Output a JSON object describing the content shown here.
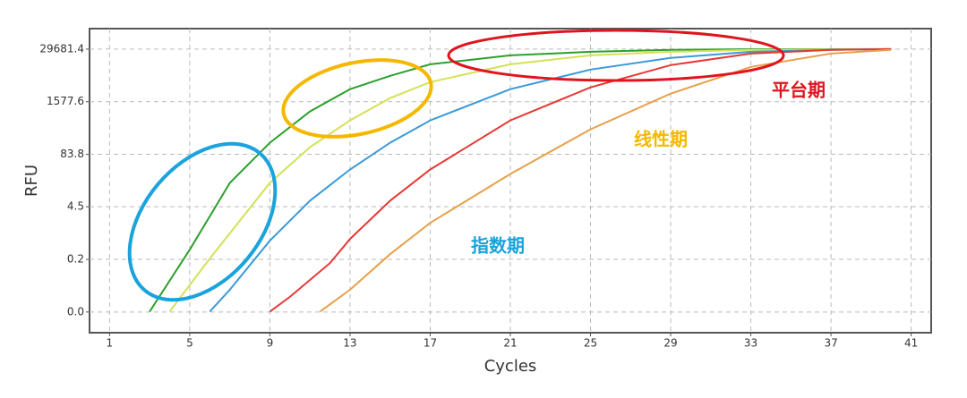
{
  "chart_data": {
    "type": "line",
    "ylabel": "RFU",
    "xlabel": "Cycles",
    "yscale": "log",
    "grid": true,
    "xlim": [
      0,
      42
    ],
    "xticks": [
      1,
      5,
      9,
      13,
      17,
      21,
      25,
      29,
      33,
      37,
      41
    ],
    "ylim": [
      0.004,
      93000
    ],
    "yticks": [
      {
        "value": 0.0127,
        "label": "0.0"
      },
      {
        "value": 0.239,
        "label": "0.2"
      },
      4.5,
      83.8,
      1577.6,
      29681.4
    ],
    "series": [
      {
        "color": "#2ca02c",
        "x": [
          3,
          5,
          7,
          9,
          11,
          13,
          15,
          17,
          21,
          25,
          29,
          33,
          40
        ],
        "values": [
          0.013,
          0.41,
          17,
          160,
          915,
          3170,
          6680,
          12700,
          20900,
          25600,
          28300,
          29500,
          29700
        ]
      },
      {
        "color": "#d4e157",
        "x": [
          4,
          6,
          9,
          11,
          13,
          15,
          17,
          21,
          25,
          29,
          33,
          40
        ],
        "values": [
          0.013,
          0.25,
          17,
          125,
          556,
          1930,
          4720,
          12700,
          20900,
          25600,
          28300,
          29700
        ]
      },
      {
        "color": "#3a9ad9",
        "x": [
          6,
          7,
          9,
          11,
          13,
          15,
          17,
          21,
          25,
          29,
          33,
          37,
          40
        ],
        "values": [
          0.013,
          0.044,
          0.68,
          6.3,
          36,
          160,
          556,
          3170,
          9460,
          18070,
          25600,
          28300,
          29700
        ]
      },
      {
        "color": "#e53935",
        "x": [
          9,
          10,
          12,
          13,
          15,
          17,
          21,
          25,
          29,
          33,
          37,
          40
        ],
        "values": [
          0.013,
          0.0295,
          0.195,
          0.75,
          6.3,
          36,
          556,
          3500,
          12130,
          23100,
          28300,
          29700
        ]
      },
      {
        "color": "#e8a04a",
        "x": [
          11.5,
          13,
          15,
          17,
          21,
          25,
          29,
          33,
          37,
          40
        ],
        "values": [
          0.013,
          0.044,
          0.32,
          1.83,
          28,
          338,
          2470,
          10990,
          23100,
          28300
        ]
      }
    ],
    "annotations": [
      {
        "text": "平台期",
        "color": "#e0141e"
      },
      {
        "text": "线性期",
        "color": "#f5b800"
      },
      {
        "text": "指数期",
        "color": "#1aa3dc"
      }
    ]
  }
}
